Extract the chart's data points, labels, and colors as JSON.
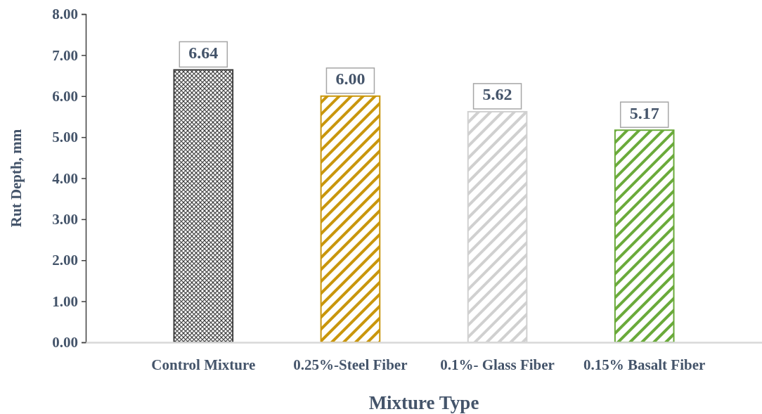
{
  "chart_data": {
    "type": "bar",
    "xlabel": "Mixture Type",
    "ylabel": "Rut Depth, mm",
    "categories": [
      "Control Mixture",
      "0.25%-Steel Fiber",
      "0.1%- Glass Fiber",
      "0.15% Basalt Fiber"
    ],
    "values": [
      6.64,
      6.0,
      5.62,
      5.17
    ],
    "colors": [
      "#404040",
      "#c9960c",
      "#d0d0d0",
      "#6aaa3a"
    ],
    "value_labels": [
      "6.64",
      "6.00",
      "5.62",
      "5.17"
    ],
    "ylim": [
      0,
      8
    ],
    "yticks": [
      {
        "value": 0,
        "label": "0.00"
      },
      {
        "value": 1,
        "label": "1.00"
      },
      {
        "value": 2,
        "label": "2.00"
      },
      {
        "value": 3,
        "label": "3.00"
      },
      {
        "value": 4,
        "label": "4.00"
      },
      {
        "value": 5,
        "label": "5.00"
      },
      {
        "value": 6,
        "label": "6.00"
      },
      {
        "value": 7,
        "label": "7.00"
      },
      {
        "value": 8,
        "label": "8.00"
      }
    ],
    "grid": false
  }
}
